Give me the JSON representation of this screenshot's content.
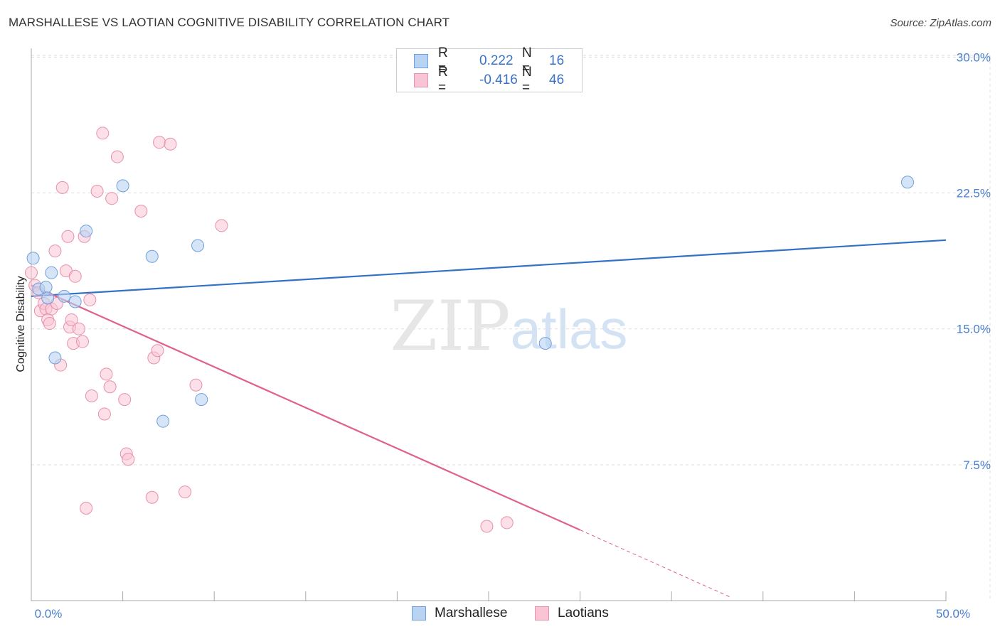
{
  "title": "MARSHALLESE VS LAOTIAN COGNITIVE DISABILITY CORRELATION CHART",
  "source": "Source: ZipAtlas.com",
  "watermark": {
    "zip": "ZIP",
    "atlas": "atlas"
  },
  "legend_top": [
    {
      "r_label": "R =",
      "r_value": "0.222",
      "n_label": "N =",
      "n_value": "16"
    },
    {
      "r_label": "R =",
      "r_value": "-0.416",
      "n_label": "N =",
      "n_value": "46"
    }
  ],
  "legend_bottom": [
    {
      "label": "Marshallese"
    },
    {
      "label": "Laotians"
    }
  ],
  "colors": {
    "marshallese_fill": "#b9d3f2",
    "marshallese_stroke": "#6f9fdc",
    "marshallese_line": "#3271c8",
    "laotians_fill": "#f9c4d4",
    "laotians_stroke": "#e890ad",
    "laotians_line": "#e0608f",
    "tick_label": "#4a7fd0",
    "grid": "#dddddd"
  },
  "chart_data": {
    "type": "scatter",
    "title": "MARSHALLESE VS LAOTIAN COGNITIVE DISABILITY CORRELATION CHART",
    "xlabel": "",
    "ylabel": "Cognitive Disability",
    "xlim": [
      0,
      50
    ],
    "ylim": [
      0,
      30.8
    ],
    "x_tick_labels": [
      {
        "value": 0,
        "label": "0.0%"
      },
      {
        "value": 50,
        "label": "50.0%"
      }
    ],
    "x_minor_ticks": [
      0,
      5,
      10,
      15,
      20,
      25,
      30,
      35,
      40,
      45,
      50
    ],
    "y_ticks": [
      {
        "value": 7.5,
        "label": "7.5%"
      },
      {
        "value": 15.0,
        "label": "15.0%"
      },
      {
        "value": 22.5,
        "label": "22.5%"
      },
      {
        "value": 30.0,
        "label": "30.0%"
      }
    ],
    "grid": true,
    "series": [
      {
        "name": "Marshallese",
        "points": [
          [
            0.1,
            18.9
          ],
          [
            0.4,
            17.2
          ],
          [
            0.8,
            17.3
          ],
          [
            0.9,
            16.7
          ],
          [
            1.1,
            18.1
          ],
          [
            1.3,
            13.4
          ],
          [
            1.8,
            16.8
          ],
          [
            2.4,
            16.5
          ],
          [
            3.0,
            20.4
          ],
          [
            5.0,
            22.9
          ],
          [
            6.6,
            19.0
          ],
          [
            7.2,
            9.9
          ],
          [
            9.1,
            19.6
          ],
          [
            9.3,
            11.1
          ],
          [
            28.1,
            14.2
          ],
          [
            47.9,
            23.1
          ]
        ],
        "trend": {
          "x0": 0,
          "y0": 16.8,
          "x1": 50,
          "y1": 19.9
        }
      },
      {
        "name": "Laotians",
        "points": [
          [
            0.0,
            18.1
          ],
          [
            0.2,
            17.4
          ],
          [
            0.4,
            17.0
          ],
          [
            0.5,
            16.0
          ],
          [
            0.7,
            16.4
          ],
          [
            0.8,
            16.1
          ],
          [
            0.9,
            15.5
          ],
          [
            1.0,
            15.3
          ],
          [
            1.1,
            16.1
          ],
          [
            1.3,
            19.3
          ],
          [
            1.4,
            16.4
          ],
          [
            1.6,
            13.0
          ],
          [
            1.7,
            22.8
          ],
          [
            1.9,
            18.2
          ],
          [
            2.0,
            20.1
          ],
          [
            2.1,
            15.1
          ],
          [
            2.2,
            15.5
          ],
          [
            2.3,
            14.2
          ],
          [
            2.4,
            17.9
          ],
          [
            2.6,
            15.0
          ],
          [
            2.8,
            14.3
          ],
          [
            2.9,
            20.1
          ],
          [
            3.0,
            5.1
          ],
          [
            3.2,
            16.6
          ],
          [
            3.3,
            11.3
          ],
          [
            3.6,
            22.6
          ],
          [
            3.9,
            25.8
          ],
          [
            4.0,
            10.3
          ],
          [
            4.1,
            12.5
          ],
          [
            4.3,
            11.8
          ],
          [
            4.4,
            22.2
          ],
          [
            4.7,
            24.5
          ],
          [
            5.1,
            11.1
          ],
          [
            5.2,
            8.1
          ],
          [
            5.3,
            7.8
          ],
          [
            6.0,
            21.5
          ],
          [
            6.6,
            5.7
          ],
          [
            6.7,
            13.4
          ],
          [
            6.9,
            13.8
          ],
          [
            7.0,
            25.3
          ],
          [
            7.6,
            25.2
          ],
          [
            8.4,
            6.0
          ],
          [
            9.0,
            11.9
          ],
          [
            10.4,
            20.7
          ],
          [
            24.9,
            4.1
          ],
          [
            26.0,
            4.3
          ]
        ],
        "trend": {
          "x0": 0,
          "y0": 17.4,
          "x1": 30.0,
          "y1": 3.9,
          "dashed_to_x": 38.2,
          "dashed_to_y": 0.2
        }
      }
    ]
  }
}
